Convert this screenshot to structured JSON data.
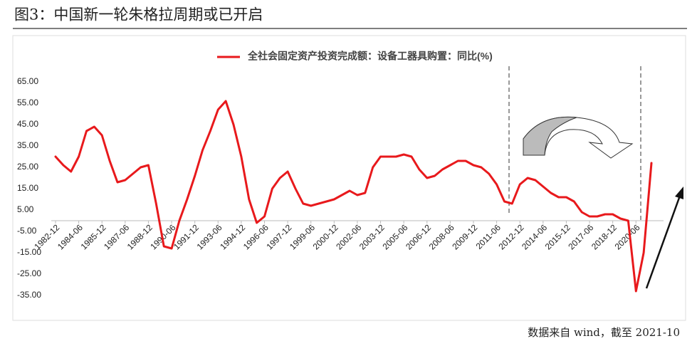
{
  "title": "图3：中国新一轮朱格拉周期或已开启",
  "source": "数据来自 wind，截至 2021-10",
  "chart_data": {
    "type": "line",
    "categories": [
      "1982-12",
      null,
      null,
      "1984-06",
      null,
      null,
      "1985-12",
      null,
      null,
      "1987-06",
      null,
      null,
      "1988-12",
      null,
      null,
      "1990-06",
      null,
      null,
      "1991-12",
      null,
      null,
      "1993-06",
      null,
      null,
      "1994-12",
      null,
      null,
      "1996-06",
      null,
      null,
      "1997-12",
      null,
      null,
      "1999-06",
      null,
      null,
      "2000-12",
      null,
      null,
      "2002-06",
      null,
      null,
      "2003-12",
      null,
      null,
      "2005-06",
      null,
      null,
      "2006-12",
      null,
      null,
      "2008-06",
      null,
      null,
      "2009-12",
      null,
      null,
      "2011-06",
      null,
      null,
      "2012-12",
      null,
      null,
      "2014-06",
      null,
      null,
      "2015-12",
      null,
      null,
      "2017-06",
      null,
      null,
      "2018-12",
      null,
      null,
      "2020-06",
      null,
      null
    ],
    "series": [
      {
        "name": "全社会固定资产投资完成额：设备工器具购置：同比(%)",
        "color": "#e8191c",
        "values": [
          30,
          26,
          23,
          30,
          42,
          44,
          40,
          28,
          18,
          19,
          22,
          25,
          26,
          8,
          -12,
          -13,
          0,
          10,
          21,
          33,
          42,
          52,
          56,
          45,
          30,
          10,
          -1,
          2,
          15,
          20,
          23,
          15,
          8,
          7,
          8,
          9,
          10,
          12,
          14,
          12,
          13,
          25,
          30,
          30,
          30,
          31,
          30,
          24,
          20,
          21,
          24,
          26,
          28,
          28,
          26,
          25,
          22,
          17,
          9,
          8,
          17,
          20,
          19,
          16,
          13,
          11,
          11,
          9,
          4,
          2,
          2,
          3,
          3,
          1,
          0,
          -33,
          -15,
          27
        ]
      }
    ],
    "ylim": [
      -40,
      70
    ],
    "yticks": [
      {
        "value": -35,
        "label": "-35.00"
      },
      {
        "value": -25,
        "label": "-25.00"
      },
      {
        "value": -15,
        "label": "-15.00"
      },
      {
        "value": -5,
        "label": "-5.00"
      },
      {
        "value": 5,
        "label": "5.00"
      },
      {
        "value": 15,
        "label": "15.00"
      },
      {
        "value": 25,
        "label": "25.00"
      },
      {
        "value": 35,
        "label": "35.00"
      },
      {
        "value": 45,
        "label": "45.00"
      },
      {
        "value": 55,
        "label": "55.00"
      },
      {
        "value": 65,
        "label": "65.00"
      }
    ],
    "legend": "top",
    "grid": false
  }
}
